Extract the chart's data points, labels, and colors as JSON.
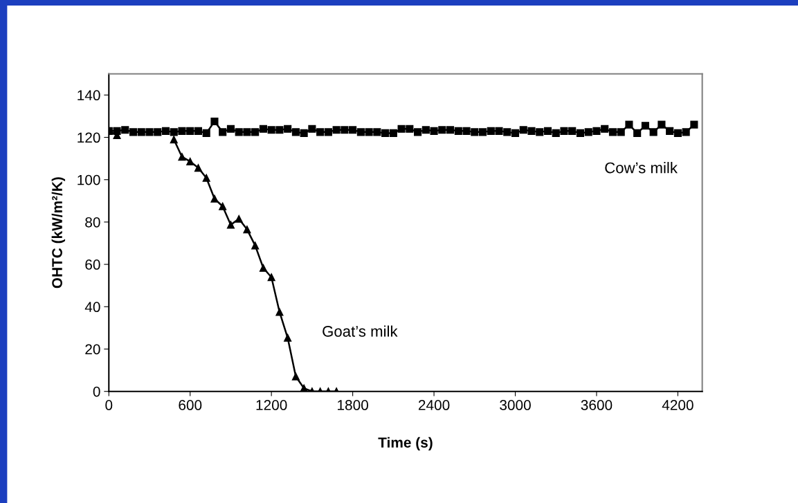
{
  "chart_data": {
    "type": "line",
    "xlabel": "Time (s)",
    "ylabel": "OHTC (kW/m²/K)",
    "xlim": [
      0,
      4380
    ],
    "xticks": [
      0,
      600,
      1200,
      1800,
      2400,
      3000,
      3600,
      4200
    ],
    "ylim": [
      0,
      150
    ],
    "yticks": [
      0,
      20,
      40,
      60,
      80,
      100,
      120,
      140
    ],
    "grid": false,
    "legend": false,
    "line_style": "solid",
    "series": [
      {
        "name": "Cow’s milk",
        "color": "#000000",
        "marker": "square",
        "x": [
          0,
          60,
          120,
          180,
          240,
          300,
          360,
          420,
          480,
          540,
          600,
          660,
          720,
          780,
          840,
          900,
          960,
          1020,
          1080,
          1140,
          1200,
          1260,
          1320,
          1380,
          1440,
          1500,
          1560,
          1620,
          1680,
          1740,
          1800,
          1860,
          1920,
          1980,
          2040,
          2100,
          2160,
          2220,
          2280,
          2340,
          2400,
          2460,
          2520,
          2580,
          2640,
          2700,
          2760,
          2820,
          2880,
          2940,
          3000,
          3060,
          3120,
          3180,
          3240,
          3300,
          3360,
          3420,
          3480,
          3540,
          3600,
          3660,
          3720,
          3780,
          3840,
          3900,
          3960,
          4020,
          4080,
          4140,
          4200,
          4260,
          4320
        ],
        "values": [
          123,
          123,
          123.5,
          122.5,
          122.5,
          122.5,
          122.5,
          123,
          122.5,
          123,
          123,
          123,
          122,
          127.5,
          122.5,
          124,
          122.5,
          122.5,
          122.5,
          124,
          123.5,
          123.5,
          124,
          122.5,
          122,
          124,
          122.5,
          122.5,
          123.5,
          123.5,
          123.5,
          122.5,
          122.5,
          122.5,
          122,
          122,
          124,
          124,
          122.5,
          123.5,
          123,
          123.5,
          123.5,
          123,
          123,
          122.5,
          122.5,
          123,
          123,
          122.5,
          122,
          123.5,
          123,
          122.5,
          123,
          122,
          123,
          123,
          122,
          122.5,
          123,
          124,
          122.5,
          122.5,
          126,
          122,
          125.5,
          122.5,
          126,
          123,
          122,
          122.5,
          126
        ]
      },
      {
        "name": "Goat’s milk",
        "color": "#000000",
        "marker": "triangle",
        "x": [
          0,
          60,
          120,
          180,
          240,
          300,
          360,
          420,
          480,
          540,
          600,
          660,
          720,
          780,
          840,
          900,
          960,
          1020,
          1080,
          1140,
          1200,
          1260,
          1320,
          1380,
          1440,
          1500,
          1560,
          1620,
          1680
        ],
        "values": [
          123,
          121,
          null,
          null,
          null,
          null,
          null,
          null,
          119,
          110.8,
          108.6,
          105.6,
          100.8,
          91,
          87.4,
          78.7,
          81.5,
          76.5,
          68.9,
          58.3,
          53.9,
          37.5,
          25.3,
          7,
          1.5,
          0,
          0,
          0,
          0
        ]
      }
    ]
  }
}
